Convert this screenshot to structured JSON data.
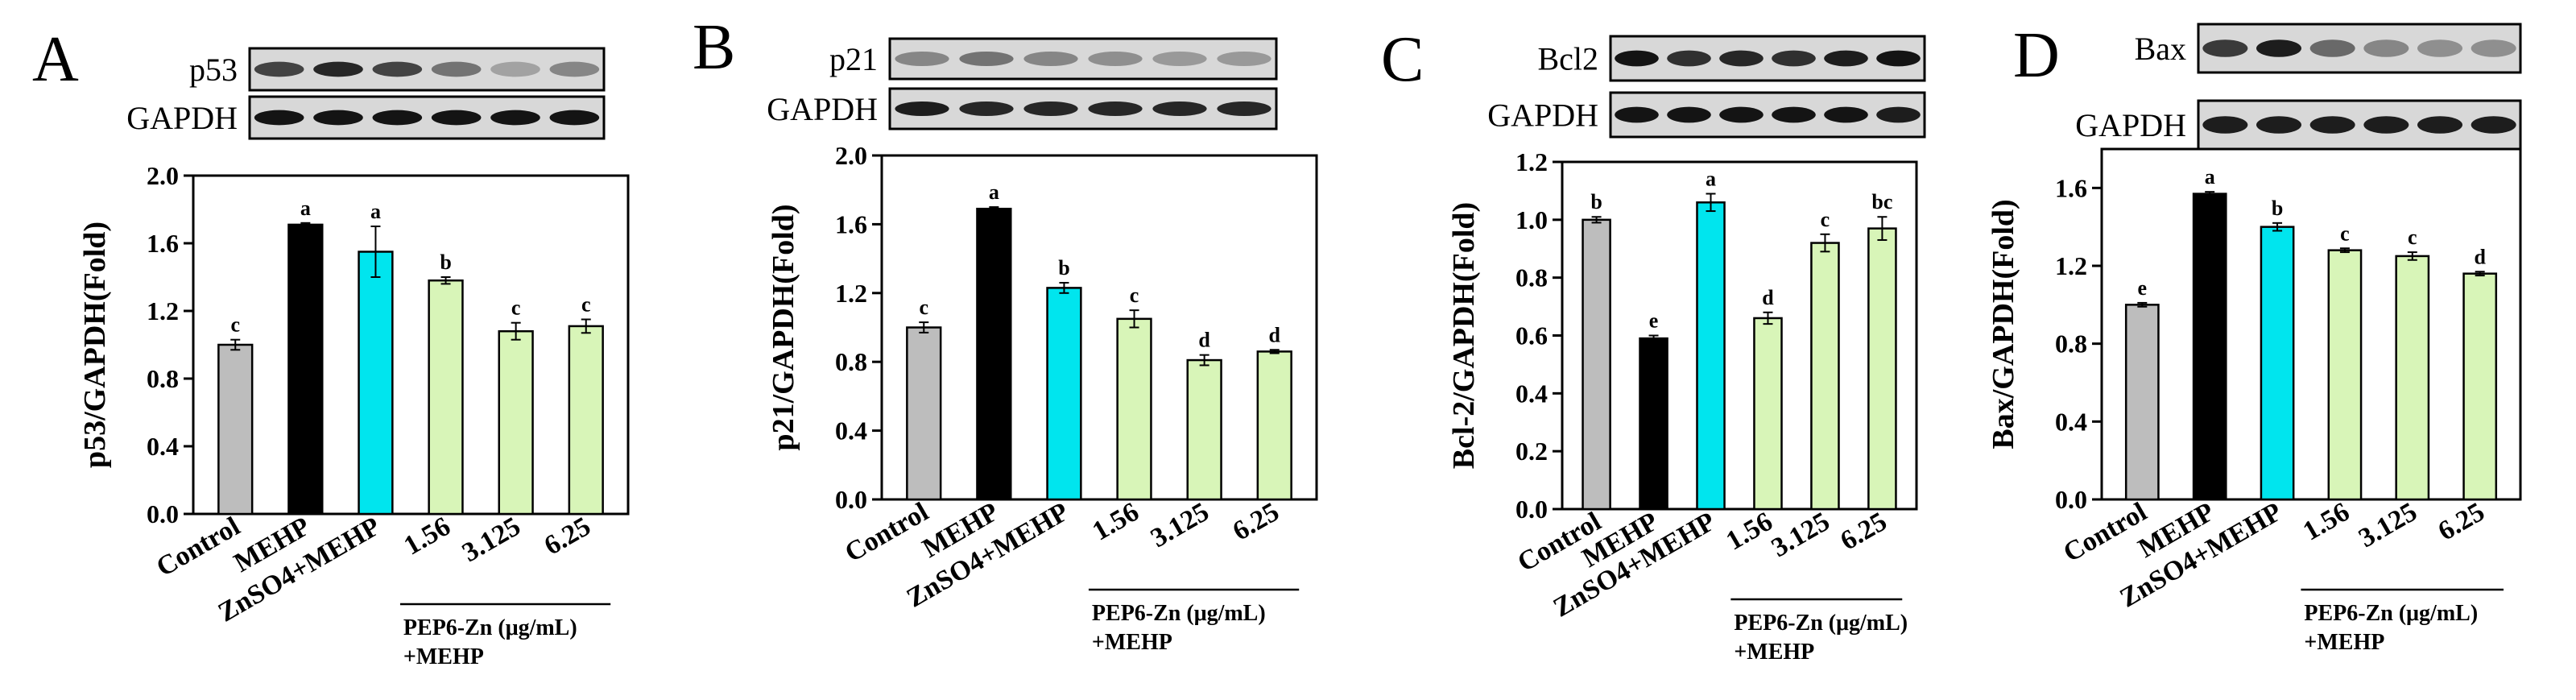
{
  "chart_data": [
    {
      "type": "bar",
      "panel": "A",
      "blots": [
        "p53",
        "GAPDH"
      ],
      "ylabel": "p53/GAPDH(Fold)",
      "ylim": [
        0,
        2.0
      ],
      "yticks": [
        "0.0",
        "0.4",
        "0.8",
        "1.2",
        "1.6",
        "2.0"
      ],
      "categories": [
        "Control",
        "MEHP",
        "ZnSO4+MEHP",
        "1.56",
        "3.125",
        "6.25"
      ],
      "values": [
        1.0,
        1.71,
        1.55,
        1.38,
        1.08,
        1.11
      ],
      "errors": [
        0.03,
        0.01,
        0.15,
        0.02,
        0.05,
        0.04
      ],
      "sig": [
        "c",
        "a",
        "a",
        "b",
        "c",
        "c"
      ],
      "group_label": [
        "PEP6-Zn (μg/mL)",
        "+MEHP"
      ]
    },
    {
      "type": "bar",
      "panel": "B",
      "blots": [
        "p21",
        "GAPDH"
      ],
      "ylabel": "p21/GAPDH(Fold)",
      "ylim": [
        0,
        2.0
      ],
      "yticks": [
        "0.0",
        "0.4",
        "0.8",
        "1.2",
        "1.6",
        "2.0"
      ],
      "categories": [
        "Control",
        "MEHP",
        "ZnSO4+MEHP",
        "1.56",
        "3.125",
        "6.25"
      ],
      "values": [
        1.0,
        1.69,
        1.23,
        1.05,
        0.81,
        0.86
      ],
      "errors": [
        0.03,
        0.01,
        0.03,
        0.05,
        0.03,
        0.01
      ],
      "sig": [
        "c",
        "a",
        "b",
        "c",
        "d",
        "d"
      ],
      "group_label": [
        "PEP6-Zn (μg/mL)",
        "+MEHP"
      ]
    },
    {
      "type": "bar",
      "panel": "C",
      "blots": [
        "Bcl2",
        "GAPDH"
      ],
      "ylabel": "Bcl-2/GAPDH(Fold)",
      "ylim": [
        0,
        1.2
      ],
      "yticks": [
        "0.0",
        "0.2",
        "0.4",
        "0.6",
        "0.8",
        "1.0",
        "1.2"
      ],
      "categories": [
        "Control",
        "MEHP",
        "ZnSO4+MEHP",
        "1.56",
        "3.125",
        "6.25"
      ],
      "values": [
        1.0,
        0.59,
        1.06,
        0.66,
        0.92,
        0.97
      ],
      "errors": [
        0.01,
        0.01,
        0.03,
        0.02,
        0.03,
        0.04
      ],
      "sig": [
        "b",
        "e",
        "a",
        "d",
        "c",
        "bc"
      ],
      "group_label": [
        "PEP6-Zn (μg/mL)",
        "+MEHP"
      ]
    },
    {
      "type": "bar",
      "panel": "D",
      "blots": [
        "Bax",
        "GAPDH"
      ],
      "ylabel": "Bax/GAPDH(Fold)",
      "ylim": [
        0,
        1.8
      ],
      "yticks": [
        "0.0",
        "0.4",
        "0.8",
        "1.2",
        "1.6"
      ],
      "categories": [
        "Control",
        "MEHP",
        "ZnSO4+MEHP",
        "1.56",
        "3.125",
        "6.25"
      ],
      "values": [
        1.0,
        1.57,
        1.4,
        1.28,
        1.25,
        1.16
      ],
      "errors": [
        0.01,
        0.01,
        0.02,
        0.01,
        0.02,
        0.01
      ],
      "sig": [
        "e",
        "a",
        "b",
        "c",
        "c",
        "d"
      ],
      "group_label": [
        "PEP6-Zn (μg/mL)",
        "+MEHP"
      ]
    }
  ],
  "colors": {
    "bars": [
      "#bdbdbd",
      "#000000",
      "#00e5ee",
      "#d8f5b8",
      "#d8f5b8",
      "#d8f5b8"
    ],
    "blot_bg": "#d8d8d8",
    "band_strong": "#161616",
    "band_medium": "#3b3b3b",
    "band_faint": "#7a7a7a"
  }
}
